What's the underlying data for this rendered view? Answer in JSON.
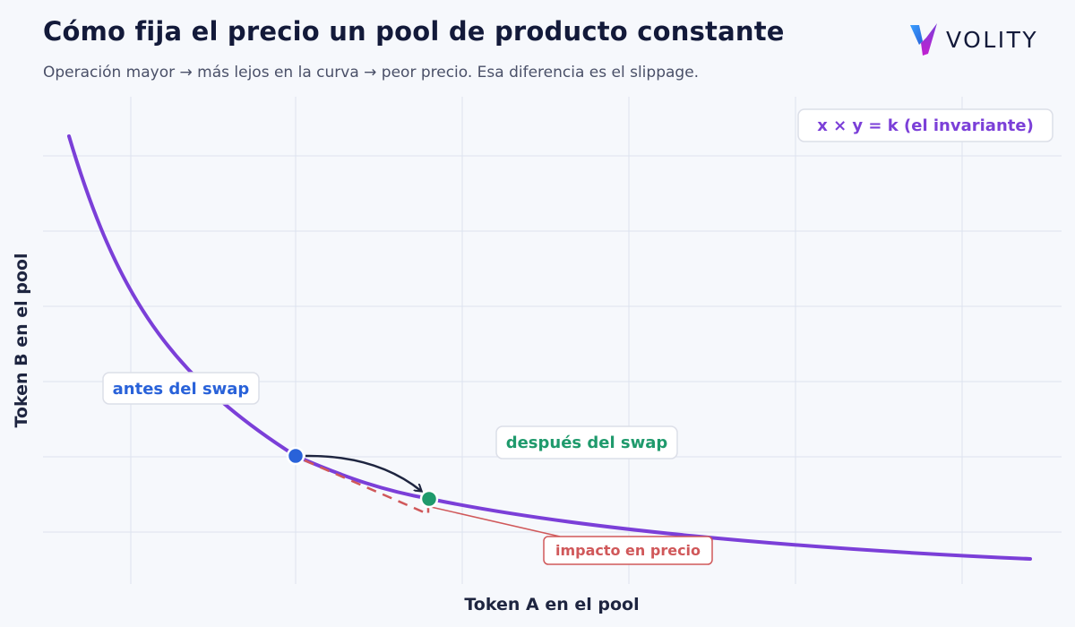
{
  "header": {
    "title": "Cómo fija el precio un pool de producto constante",
    "subtitle": "Operación mayor → más lejos en la curva → peor precio. Esa diferencia es el slippage."
  },
  "brand": {
    "name": "VOLITY",
    "icon": "volity-logo-icon"
  },
  "chart_data": {
    "type": "line",
    "title": "Cómo fija el precio un pool de producto constante",
    "subtitle": "Operación mayor → más lejos en la curva → peor precio. Esa diferencia es el slippage.",
    "xlabel": "Token A en el pool",
    "ylabel": "Token B en el pool",
    "grid": true,
    "axis_tick_labels": "none",
    "series": [
      {
        "name": "x × y = k  (el invariante)",
        "color": "#7b3fd8",
        "curve": "x*y=k"
      }
    ],
    "points": [
      {
        "label": "antes del swap",
        "color": "#2962d9"
      },
      {
        "label": "después del swap",
        "color": "#1f9a6c"
      }
    ],
    "annotations": [
      {
        "text": "x × y = k  (el invariante)",
        "color": "#7b3fd8",
        "position": "top-right"
      },
      {
        "text": "antes del swap",
        "color": "#2962d9"
      },
      {
        "text": "después del swap",
        "color": "#1f9a6c"
      },
      {
        "text": "impacto en precio",
        "color": "#d0585a"
      }
    ],
    "colors": {
      "curve": "#7b3fd8",
      "before": "#2962d9",
      "after": "#1f9a6c",
      "impact": "#d0585a",
      "arrow": "#1e2540",
      "grid": "#dde2ee"
    }
  }
}
